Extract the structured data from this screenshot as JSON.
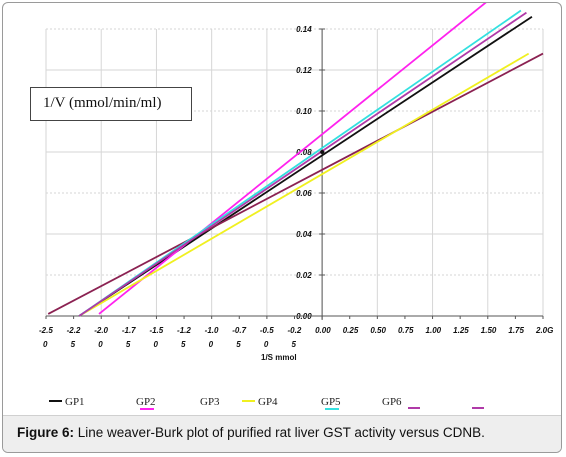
{
  "chart_data": {
    "type": "line",
    "title": "",
    "ylabel": "1/V (mmol/min/ml)",
    "xlabel": "1/S mmol",
    "xlim": [
      -2.5,
      2.0
    ],
    "ylim": [
      0.0,
      0.14
    ],
    "grid": true,
    "x_ticks": [
      {
        "value": -2.5,
        "top": "-2.5",
        "bottom": "0"
      },
      {
        "value": -2.25,
        "top": "-2.2",
        "bottom": "5"
      },
      {
        "value": -2.0,
        "top": "-2.0",
        "bottom": "0"
      },
      {
        "value": -1.75,
        "top": "-1.7",
        "bottom": "5"
      },
      {
        "value": -1.5,
        "top": "-1.5",
        "bottom": "0"
      },
      {
        "value": -1.25,
        "top": "-1.2",
        "bottom": "5"
      },
      {
        "value": -1.0,
        "top": "-1.0",
        "bottom": "0"
      },
      {
        "value": -0.75,
        "top": "-0.7",
        "bottom": "5"
      },
      {
        "value": -0.5,
        "top": "-0.5",
        "bottom": "0"
      },
      {
        "value": -0.25,
        "top": "-0.2",
        "bottom": "5"
      },
      {
        "value": 0.0,
        "top": "0.00",
        "bottom": ""
      },
      {
        "value": 0.25,
        "top": "0.25",
        "bottom": ""
      },
      {
        "value": 0.5,
        "top": "0.50",
        "bottom": ""
      },
      {
        "value": 0.75,
        "top": "0.75",
        "bottom": ""
      },
      {
        "value": 1.0,
        "top": "1.00",
        "bottom": ""
      },
      {
        "value": 1.25,
        "top": "1.25",
        "bottom": ""
      },
      {
        "value": 1.5,
        "top": "1.50",
        "bottom": ""
      },
      {
        "value": 1.75,
        "top": "1.75",
        "bottom": ""
      },
      {
        "value": 2.0,
        "top": "2.0G",
        "bottom": ""
      }
    ],
    "y_ticks": [
      "0.00",
      "0.02",
      "0.04",
      "0.06",
      "0.08",
      "0.10",
      "0.12",
      "0.14"
    ],
    "y_tick_values": [
      0.0,
      0.02,
      0.04,
      0.06,
      0.08,
      0.1,
      0.12,
      0.14
    ],
    "series": [
      {
        "name": "GP1",
        "color": "#111111",
        "x": [
          -2.2,
          1.9
        ],
        "y": [
          0.0,
          0.146
        ]
      },
      {
        "name": "GP2",
        "color": "#ff22ee",
        "x": [
          -2.02,
          1.53
        ],
        "y": [
          0.001,
          0.155
        ]
      },
      {
        "name": "GP3",
        "color": "#8b2252",
        "x": [
          -2.48,
          2.0
        ],
        "y": [
          0.001,
          0.128
        ]
      },
      {
        "name": "GP4",
        "color": "#f0f020",
        "x": [
          -2.2,
          1.87
        ],
        "y": [
          0.0,
          0.128
        ]
      },
      {
        "name": "GP5",
        "color": "#33e0e0",
        "x": [
          -2.2,
          1.8
        ],
        "y": [
          0.0,
          0.149
        ]
      },
      {
        "name": "GP6",
        "color": "#b03aa8",
        "x": [
          -2.2,
          1.85
        ],
        "y": [
          0.0,
          0.148
        ]
      }
    ],
    "point_markers": [
      {
        "x": 0.0,
        "y": 0.08
      }
    ],
    "legend": [
      {
        "name": "GP1",
        "color": "#111111",
        "swatch": "left"
      },
      {
        "name": "GP2",
        "color": "#ff22ee",
        "swatch": "under"
      },
      {
        "name": "GP3",
        "color": "#8b2252",
        "swatch": "none"
      },
      {
        "name": "GP4",
        "color": "#f0f020",
        "swatch": "left"
      },
      {
        "name": "GP5",
        "color": "#33e0e0",
        "swatch": "under"
      },
      {
        "name": "GP6",
        "color": "#b03aa8",
        "swatch": "right"
      }
    ],
    "legend_extra_swatch_color": "#b03aa8",
    "legend_position": "bottom"
  },
  "caption": {
    "label": "Figure 6:",
    "text": " Line weaver-Burk plot of purified rat liver GST activity versus CDNB."
  }
}
